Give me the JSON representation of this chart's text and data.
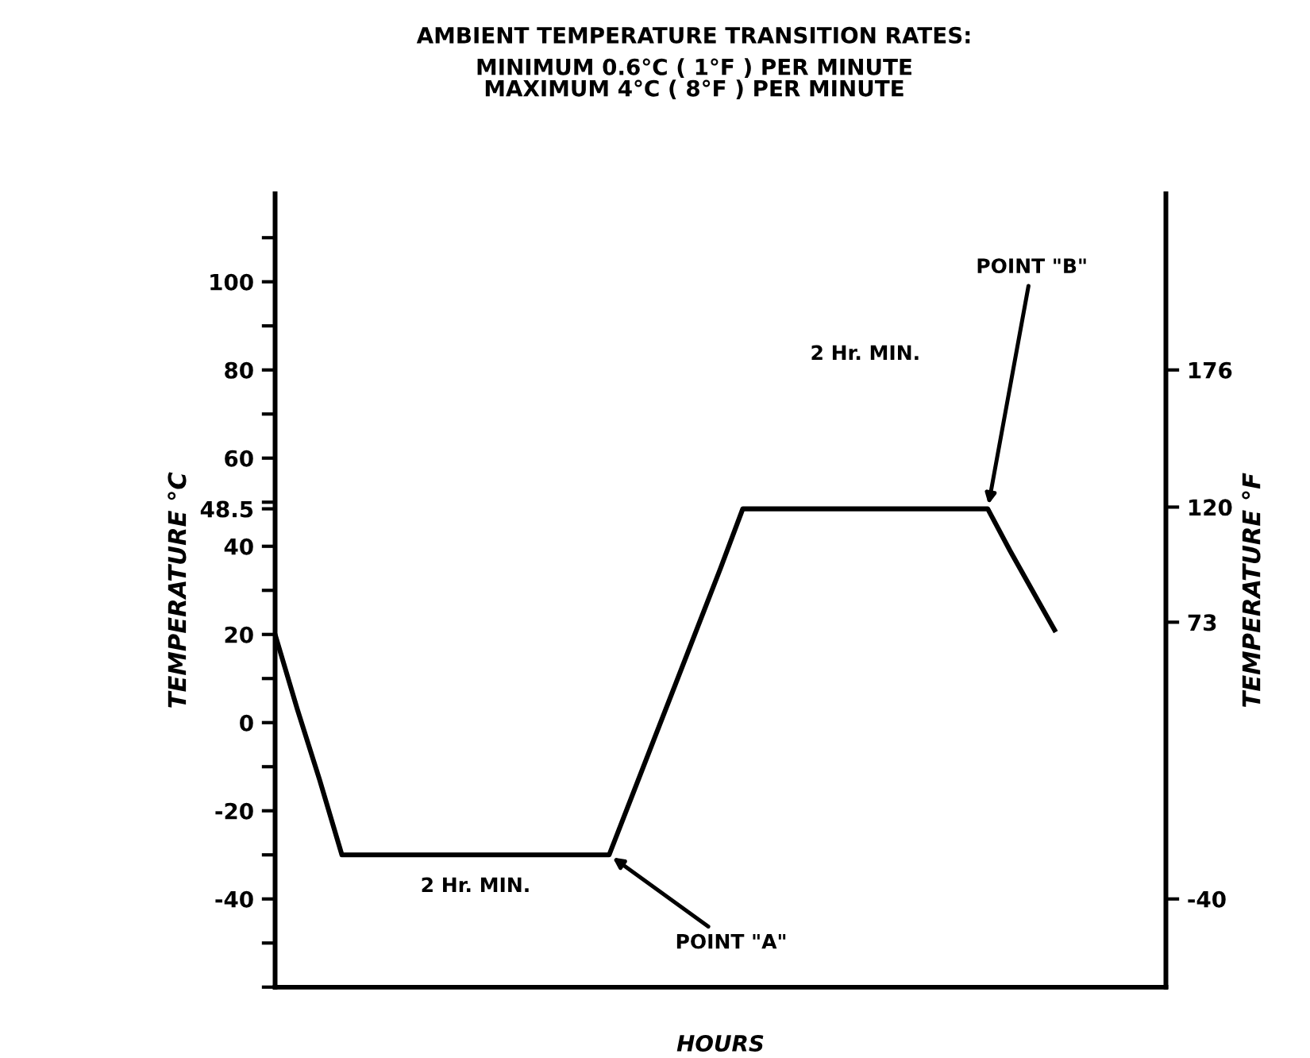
{
  "chart_data": {
    "type": "line",
    "title": "AMBIENT TEMPERATURE TRANSITION RATES:",
    "subtitle": "MINIMUM 0.6°C ( 1°F ) PER MINUTE\nMAXIMUM 4°C ( 8°F ) PER MINUTE",
    "xlabel": "HOURS",
    "ylabel": "TEMPERATURE °C",
    "y2label": "TEMPERATURE °F",
    "categories": [
      null,
      null,
      null,
      null,
      null,
      null,
      null,
      null,
      null,
      null,
      null,
      null,
      null,
      null,
      null,
      null,
      null,
      null,
      null,
      null,
      null,
      null,
      null,
      null,
      null,
      null,
      null,
      null,
      null,
      null,
      null,
      null,
      null,
      null,
      null,
      null,
      null,
      null,
      null,
      null,
      null
    ],
    "series": [
      {
        "color": "#000000",
        "values": [
          20,
          3,
          -13,
          -30,
          -30,
          -30,
          -30,
          -30,
          -30,
          -30,
          -30,
          -30,
          -30,
          -30,
          -30,
          -30,
          -17,
          -4,
          9,
          22,
          35,
          48.5,
          48.5,
          48.5,
          48.5,
          48.5,
          48.5,
          48.5,
          48.5,
          48.5,
          48.5,
          48.5,
          48.5,
          39,
          30,
          21,
          null,
          null,
          null,
          null,
          null
        ]
      }
    ],
    "ylim": [
      -60,
      120
    ],
    "yticks": [
      {
        "value": -60,
        "label": null
      },
      {
        "value": -50,
        "label": null
      },
      -40,
      {
        "value": -30,
        "label": null
      },
      -20,
      {
        "value": -10,
        "label": null
      },
      0,
      {
        "value": 10,
        "label": null
      },
      20,
      {
        "value": 30,
        "label": null
      },
      40,
      48.5,
      {
        "value": 50,
        "label": null
      },
      60,
      {
        "value": 70,
        "label": null
      },
      80,
      {
        "value": 90,
        "label": null
      },
      100,
      {
        "value": 110,
        "label": null
      }
    ],
    "y2lim": [
      -76,
      248
    ],
    "y2ticks": [
      -40,
      73,
      120,
      176
    ],
    "annotations": [
      "2 Hr. MIN.",
      "2 Hr. MIN.",
      "POINT \"A\"",
      "POINT \"B\""
    ],
    "grid": false,
    "legend": false,
    "marker": "none",
    "line_style": "solid"
  }
}
